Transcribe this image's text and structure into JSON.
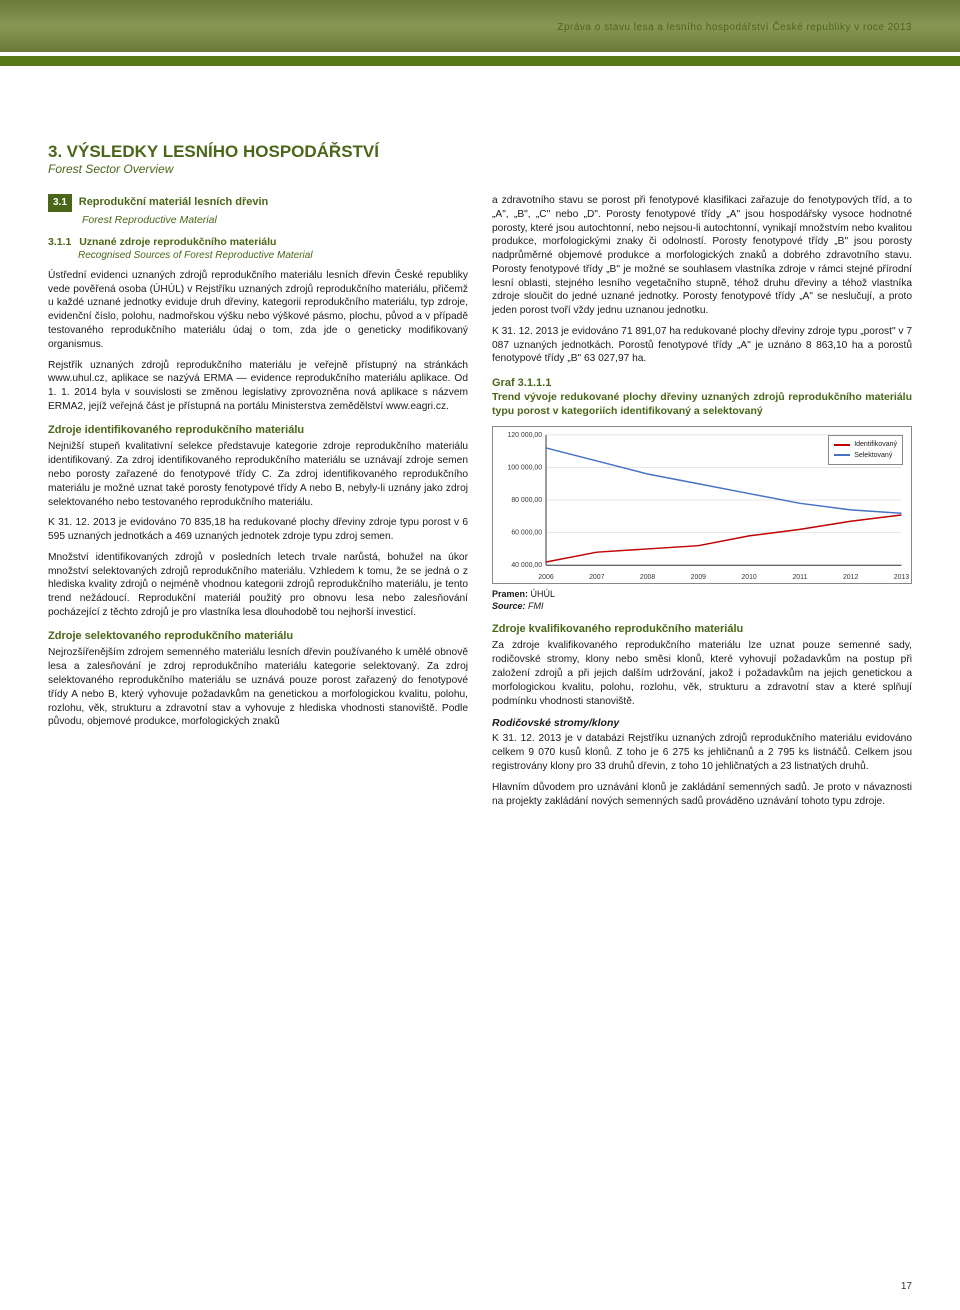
{
  "header": {
    "running_title": "Zpráva o stavu lesa a lesního hospodářství České republiky v roce 2013"
  },
  "page_number": "17",
  "title": {
    "num": "3.",
    "text": "VÝSLEDKY LESNÍHO HOSPODÁŘSTVÍ",
    "sub": "Forest Sector Overview"
  },
  "section": {
    "num": "3.1",
    "title": "Reprodukční materiál lesních dřevin",
    "sub": "Forest Reproductive Material"
  },
  "subsection": {
    "num": "3.1.1",
    "title": "Uznané zdroje reprodukčního materiálu",
    "sub": "Recognised Sources of Forest Reproductive Material"
  },
  "left": {
    "p1": "Ústřední evidenci uznaných zdrojů reprodukčního materiálu lesních dřevin České republiky vede pověřená osoba (ÚHÚL) v Rejstříku uznaných zdrojů reprodukčního materiálu, přičemž u každé uznané jednotky eviduje druh dřeviny, kategorii reprodukčního materiálu, typ zdroje, evidenční číslo, polohu, nadmořskou výšku nebo výškové pásmo, plochu, původ a v případě testovaného reprodukčního materiálu údaj o tom, zda jde o geneticky modifikovaný organismus.",
    "p2": "Rejstřík uznaných zdrojů reprodukčního materiálu je veřejně přístupný na stránkách www.uhul.cz, aplikace se nazývá ERMA — evidence reprodukčního materiálu aplikace. Od 1. 1. 2014 byla v souvislosti se změnou legislativy zprovozněna nová aplikace s názvem ERMA2, jejíž veřejná část je přístupná na portálu Ministerstva zemědělství www.eagri.cz.",
    "h1": "Zdroje identifikovaného reprodukčního materiálu",
    "p3": "Nejnižší stupeň kvalitativní selekce představuje kategorie zdroje reprodukčního materiálu identifikovaný. Za zdroj identifikovaného reprodukčního materiálu se uznávají zdroje semen nebo porosty zařazené do fenotypové třídy C. Za zdroj identifikovaného reprodukčního materiálu je možné uznat také porosty fenotypové třídy A nebo B, nebyly-li uznány jako zdroj selektovaného nebo testovaného reprodukčního materiálu.",
    "p4": "K 31. 12. 2013 je evidováno 70 835,18 ha redukované plochy dřeviny zdroje typu porost v 6 595 uznaných jednotkách a 469 uznaných jednotek zdroje typu zdroj semen.",
    "p5": "Množství identifikovaných zdrojů v posledních letech trvale narůstá, bohužel na úkor množství selektovaných zdrojů reprodukčního materiálu. Vzhledem k tomu, že se jedná o z hlediska kvality zdrojů o nejméně vhodnou kategorii zdrojů reprodukčního materiálu, je tento trend nežádoucí. Reprodukční materiál použitý pro obnovu lesa nebo zalesňování pocházející z těchto zdrojů je pro vlastníka lesa dlouhodobě tou nejhorší investicí.",
    "h2": "Zdroje selektovaného reprodukčního materiálu",
    "p6": "Nejrozšířenějším zdrojem semenného materiálu lesních dřevin používaného k umělé obnově lesa a zalesňování je zdroj reprodukčního materiálu kategorie selektovaný. Za zdroj selektovaného reprodukčního materiálu se uznává pouze porost zařazený do fenotypové třídy A nebo B, který vyhovuje požadavkům na genetickou a morfologickou kvalitu, polohu, rozlohu, věk, strukturu a zdravotní stav a vyhovuje z hlediska vhodnosti stanoviště. Podle původu, objemové produkce, morfologických znaků"
  },
  "right": {
    "p1": "a zdravotního stavu se porost při fenotypové klasifikaci zařazuje do fenotypových tříd, a to „A\", „B\", „C\" nebo „D\". Porosty fenotypové třídy „A\" jsou hospodářsky vysoce hodnotné porosty, které jsou autochtonní, nebo nejsou-li autochtonní, vynikají množstvím nebo kvalitou produkce, morfologickými znaky či odolností. Porosty fenotypové třídy „B\" jsou porosty nadprůměrné objemové produkce a morfologických znaků a dobrého zdravotního stavu. Porosty fenotypové třídy „B\" je možné se souhlasem vlastníka zdroje v rámci stejné přírodní lesní oblasti, stejného lesního vegetačního stupně, téhož druhu dřeviny a téhož vlastníka zdroje sloučit do jedné uznané jednotky. Porosty fenotypové třídy „A\" se neslučují, a proto jeden porost tvoří vždy jednu uznanou jednotku.",
    "p2": "K 31. 12. 2013 je evidováno 71 891,07 ha redukované plochy dřeviny zdroje typu „porost\" v 7 087 uznaných jednotkách. Porostů fenotypové třídy „A\" je uznáno 8 863,10 ha a porostů fenotypové třídy „B\" 63 027,97 ha.",
    "graf_num": "Graf 3.1.1.1",
    "graf_desc": "Trend vývoje redukované plochy dřeviny uznaných zdrojů reprodukčního materiálu typu porost v kategoriích identifikovaný a selektovaný",
    "pramen_lbl": "Pramen:",
    "pramen_val": "ÚHÚL",
    "source_lbl": "Source:",
    "source_val": "FMI",
    "h1": "Zdroje kvalifikovaného reprodukčního materiálu",
    "p3": "Za zdroje kvalifikovaného reprodukčního materiálu lze uznat pouze semenné sady, rodičovské stromy, klony nebo směsi klonů, které vyhovují požadavkům na postup při založení zdrojů a při jejich dalším udržování, jakož i požadavkům na jejich genetickou a morfologickou kvalitu, polohu, rozlohu, věk, strukturu a zdravotní stav a které splňují podmínku vhodnosti stanoviště.",
    "h2": "Rodičovské stromy/klony",
    "p4": "K 31. 12. 2013 je v databázi Rejstříku uznaných zdrojů reprodukčního materiálu evidováno celkem 9 070 kusů klonů. Z toho je 6 275 ks jehličnanů a 2 795 ks listnáčů. Celkem jsou registrovány klony pro 33 druhů dřevin, z toho 10 jehličnatých a 23 listnatých druhů.",
    "p5": "Hlavním důvodem pro uznávání klonů je zakládání semenných sadů. Je proto v návaznosti na projekty zakládání nových semenných sadů prováděno uznávání tohoto typu zdroje."
  },
  "chart": {
    "type": "line",
    "series": [
      {
        "name": "Identifikovaný",
        "color": "#c00000",
        "values": [
          42000,
          48000,
          50000,
          52000,
          58000,
          62000,
          67000,
          70835
        ]
      },
      {
        "name": "Selektovaný",
        "color": "#4472c4",
        "values": [
          112000,
          104000,
          96000,
          90000,
          84000,
          78000,
          74000,
          71891
        ]
      }
    ],
    "x_labels": [
      "2006",
      "2007",
      "2008",
      "2009",
      "2010",
      "2011",
      "2012",
      "2013"
    ],
    "y_ticks": [
      40000,
      60000,
      80000,
      100000,
      120000
    ],
    "y_tick_labels": [
      "40 000,00",
      "60 000,00",
      "80 000,00",
      "100 000,00",
      "120 000,00"
    ],
    "ylim": [
      40000,
      120000
    ],
    "background_color": "#ffffff",
    "grid_color": "#cccccc",
    "axis_color": "#333333",
    "tick_fontsize": 7,
    "line_width": 1.5,
    "legend_fontsize": 7
  }
}
